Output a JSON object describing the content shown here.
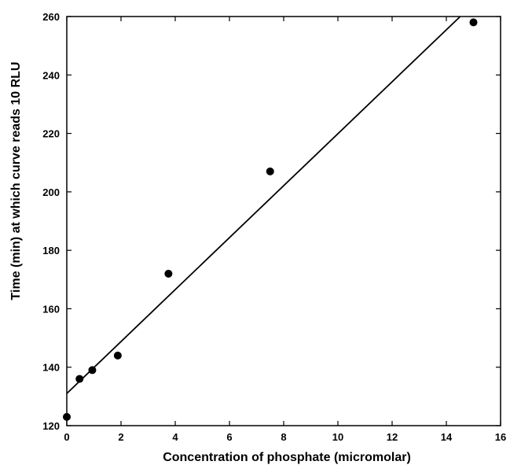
{
  "chart_data": {
    "type": "scatter",
    "title": "",
    "xlabel": "Concentration of phosphate (micromolar)",
    "ylabel": "Time (min) at which curve reads 10 RLU",
    "xlim": [
      0,
      16
    ],
    "ylim": [
      120,
      260
    ],
    "x_ticks": [
      0,
      2,
      4,
      6,
      8,
      10,
      12,
      14,
      16
    ],
    "y_ticks": [
      120,
      140,
      160,
      180,
      200,
      220,
      240,
      260
    ],
    "grid": false,
    "legend": "none",
    "series": [
      {
        "x": [
          0,
          0.47,
          0.94,
          1.88,
          3.75,
          7.5,
          15
        ],
        "y": [
          123,
          136,
          139,
          144,
          172,
          207,
          258
        ]
      }
    ],
    "fit_line": {
      "slope": 8.89,
      "intercept": 131,
      "x_range": [
        0,
        14.5
      ]
    },
    "colors": {
      "marker": "#000000",
      "line": "#000000",
      "axis": "#000000"
    }
  }
}
